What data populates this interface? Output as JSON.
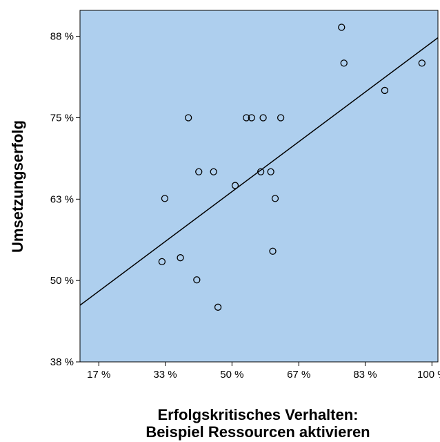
{
  "chart_data": {
    "type": "scatter",
    "xlabel": [
      "Erfolgskritisches Verhalten:",
      "Beispiel Ressourcen aktivieren"
    ],
    "ylabel": "Umsetzungserfolg",
    "xlim": [
      12.0,
      101.5
    ],
    "ylim": [
      37.5,
      91.5
    ],
    "x_ticks": [
      16.7,
      33.3,
      50.0,
      66.7,
      83.3,
      100.0
    ],
    "x_tick_labels": [
      "17 %",
      "33 %",
      "50 %",
      "67 %",
      "83 %",
      "100 %"
    ],
    "y_ticks": [
      37.5,
      50.0,
      62.5,
      75.0,
      87.5
    ],
    "y_tick_labels": [
      "38 %",
      "50 %",
      "63 %",
      "75 %",
      "88 %"
    ],
    "grid": false,
    "colors": {
      "plot_background": "#aecfee",
      "marker_stroke": "#000000",
      "line": "#000000"
    },
    "points": [
      {
        "x": 32.5,
        "y": 52.9
      },
      {
        "x": 33.2,
        "y": 62.6
      },
      {
        "x": 37.1,
        "y": 53.5
      },
      {
        "x": 39.1,
        "y": 75.0
      },
      {
        "x": 41.2,
        "y": 50.1
      },
      {
        "x": 41.7,
        "y": 66.7
      },
      {
        "x": 45.4,
        "y": 66.7
      },
      {
        "x": 46.5,
        "y": 45.9
      },
      {
        "x": 50.8,
        "y": 64.6
      },
      {
        "x": 53.6,
        "y": 75.0
      },
      {
        "x": 54.9,
        "y": 75.0
      },
      {
        "x": 57.2,
        "y": 66.7
      },
      {
        "x": 57.8,
        "y": 75.0
      },
      {
        "x": 59.7,
        "y": 66.7
      },
      {
        "x": 60.2,
        "y": 54.5
      },
      {
        "x": 60.8,
        "y": 62.6
      },
      {
        "x": 62.2,
        "y": 75.0
      },
      {
        "x": 77.4,
        "y": 88.9
      },
      {
        "x": 78.0,
        "y": 83.4
      },
      {
        "x": 88.2,
        "y": 79.2
      },
      {
        "x": 97.5,
        "y": 83.4
      }
    ],
    "fit_line": {
      "x": [
        12.0,
        101.5
      ],
      "y": [
        46.2,
        87.3
      ]
    }
  }
}
